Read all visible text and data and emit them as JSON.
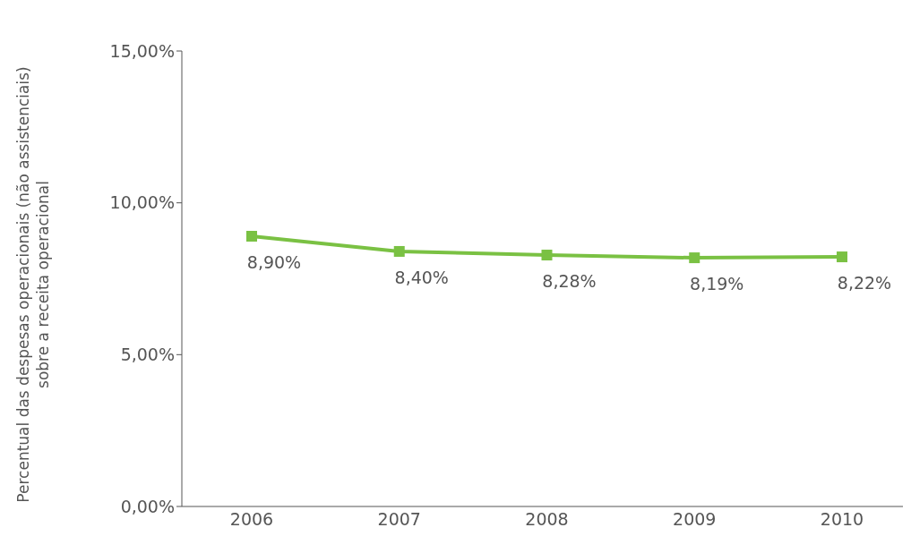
{
  "chart_data": {
    "type": "line",
    "ylabel": "Percentual das despesas operacionais (não assistenciais)\nsobre a receita operacional",
    "categories": [
      "2006",
      "2007",
      "2008",
      "2009",
      "2010"
    ],
    "series": [
      {
        "color": "#7ac143",
        "values": [
          8.9,
          8.4,
          8.28,
          8.19,
          8.22
        ],
        "value_labels": [
          "8,90%",
          "8,40%",
          "8,28%",
          "8,19%",
          "8,22%"
        ]
      }
    ],
    "ylim": [
      0,
      15
    ],
    "yticks": [
      {
        "value": 0,
        "label": "0,00%"
      },
      {
        "value": 5,
        "label": "5,00%"
      },
      {
        "value": 10,
        "label": "10,00%"
      },
      {
        "value": 15,
        "label": "15,00%"
      }
    ],
    "grid": false,
    "legend": false,
    "marker": "square",
    "line_style": "solid"
  }
}
